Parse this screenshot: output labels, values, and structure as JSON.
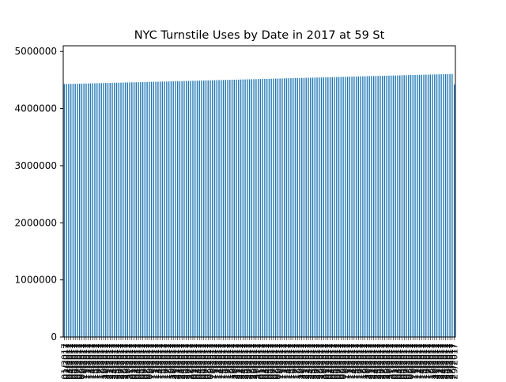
{
  "chart_data": {
    "type": "bar",
    "title": "NYC Turnstile Uses by Date in 2017 at 59 St",
    "ylabel": "",
    "xlabel": "",
    "ylim": [
      0,
      5100000
    ],
    "yticks": [
      0,
      1000000,
      2000000,
      3000000,
      4000000,
      5000000
    ],
    "ytick_labels": [
      "0",
      "1000000",
      "2000000",
      "3000000",
      "4000000",
      "5000000"
    ],
    "bar_color": "#1f77b4",
    "grid": false,
    "legend": "none",
    "categories": [
      "01/01/2017",
      "01/02/2017",
      "01/03/2017",
      "01/04/2017",
      "01/05/2017",
      "01/06/2017",
      "01/07/2017",
      "01/08/2017",
      "01/09/2017",
      "01/10/2017",
      "01/11/2017",
      "01/12/2017",
      "01/13/2017",
      "01/14/2017",
      "01/15/2017",
      "01/16/2017",
      "01/17/2017",
      "01/18/2017",
      "01/19/2017",
      "01/20/2017",
      "01/21/2017",
      "01/22/2017",
      "01/23/2017",
      "01/24/2017",
      "01/25/2017",
      "01/26/2017",
      "01/27/2017",
      "01/28/2017",
      "01/29/2017",
      "01/30/2017",
      "01/31/2017",
      "02/01/2017",
      "02/02/2017",
      "02/03/2017",
      "02/04/2017",
      "02/05/2017",
      "02/06/2017",
      "02/07/2017",
      "02/08/2017",
      "02/09/2017",
      "02/10/2017",
      "02/11/2017",
      "02/12/2017",
      "02/13/2017",
      "02/14/2017",
      "02/15/2017",
      "02/16/2017",
      "02/17/2017",
      "02/18/2017",
      "02/19/2017",
      "02/20/2017",
      "02/21/2017",
      "02/22/2017",
      "02/23/2017",
      "02/24/2017",
      "02/25/2017",
      "02/26/2017",
      "02/27/2017",
      "02/28/2017",
      "03/01/2017",
      "03/02/2017",
      "03/03/2017",
      "03/04/2017",
      "03/05/2017",
      "03/06/2017",
      "03/07/2017",
      "03/08/2017",
      "03/09/2017",
      "03/10/2017",
      "03/11/2017",
      "03/12/2017",
      "03/13/2017",
      "03/14/2017",
      "03/15/2017",
      "03/16/2017",
      "03/17/2017",
      "03/18/2017",
      "03/19/2017",
      "03/20/2017",
      "03/21/2017",
      "03/22/2017",
      "03/23/2017",
      "03/24/2017",
      "03/25/2017",
      "03/26/2017",
      "03/27/2017",
      "03/28/2017",
      "03/29/2017",
      "03/30/2017",
      "03/31/2017",
      "04/01/2017",
      "04/02/2017",
      "04/03/2017",
      "04/04/2017",
      "04/05/2017",
      "04/06/2017",
      "04/07/2017",
      "04/08/2017",
      "04/09/2017",
      "04/10/2017",
      "04/11/2017",
      "04/12/2017",
      "04/13/2017",
      "04/14/2017",
      "04/15/2017",
      "04/16/2017",
      "04/17/2017",
      "04/18/2017",
      "04/19/2017",
      "04/20/2017",
      "04/21/2017",
      "04/22/2017",
      "04/23/2017",
      "04/24/2017",
      "04/25/2017",
      "04/26/2017",
      "04/27/2017",
      "04/28/2017",
      "04/29/2017",
      "04/30/2017",
      "05/01/2017",
      "05/02/2017",
      "05/03/2017",
      "05/04/2017",
      "05/05/2017",
      "05/06/2017",
      "05/07/2017",
      "05/08/2017",
      "05/09/2017",
      "05/10/2017",
      "05/11/2017",
      "05/12/2017",
      "05/13/2017",
      "05/14/2017",
      "05/15/2017",
      "05/16/2017",
      "05/17/2017",
      "05/18/2017",
      "05/19/2017",
      "05/20/2017",
      "05/21/2017",
      "05/22/2017",
      "05/23/2017",
      "05/24/2017",
      "05/25/2017",
      "05/26/2017",
      "05/27/2017",
      "05/28/2017",
      "05/29/2017",
      "05/30/2017",
      "05/31/2017",
      "06/01/2017",
      "06/02/2017",
      "06/03/2017",
      "06/04/2017",
      "06/05/2017",
      "06/06/2017",
      "06/07/2017",
      "06/08/2017",
      "06/09/2017",
      "06/10/2017",
      "06/11/2017",
      "06/12/2017",
      "06/13/2017",
      "06/14/2017",
      "06/15/2017",
      "06/16/2017",
      "06/17/2017",
      "06/18/2017",
      "06/19/2017",
      "06/20/2017",
      "06/21/2017",
      "06/22/2017",
      "06/23/2017",
      "06/24/2017",
      "06/25/2017",
      "06/26/2017",
      "06/27/2017",
      "06/28/2017",
      "06/29/2017"
    ],
    "values": [
      4430000,
      4431000,
      4432000,
      4433000,
      4434000,
      4434000,
      4435000,
      4436000,
      4437000,
      4438000,
      4439000,
      4440000,
      4441000,
      4442000,
      4443000,
      4444000,
      4445000,
      4446000,
      4447000,
      4448000,
      4449000,
      4450000,
      4451000,
      4452000,
      4453000,
      4454000,
      4455000,
      4456000,
      4457000,
      4458000,
      4459000,
      4460000,
      4461000,
      4461000,
      4462000,
      4463000,
      4464000,
      4465000,
      4466000,
      4467000,
      4468000,
      4469000,
      4470000,
      4471000,
      4472000,
      4473000,
      4474000,
      4475000,
      4476000,
      4477000,
      4478000,
      4479000,
      4480000,
      4481000,
      4482000,
      4483000,
      4484000,
      4485000,
      4486000,
      4487000,
      4488000,
      4489000,
      4490000,
      4491000,
      4492000,
      4493000,
      4494000,
      4495000,
      4496000,
      4497000,
      4498000,
      4499000,
      4500000,
      4501000,
      4502000,
      4503000,
      4504000,
      4505000,
      4506000,
      4507000,
      4508000,
      4509000,
      4510000,
      4511000,
      4512000,
      4513000,
      4514000,
      4515000,
      4516000,
      4517000,
      4518000,
      4519000,
      4520000,
      4521000,
      4522000,
      4523000,
      4524000,
      4525000,
      4526000,
      4527000,
      4528000,
      4529000,
      4530000,
      4531000,
      4532000,
      4533000,
      4534000,
      4535000,
      4536000,
      4537000,
      4538000,
      4539000,
      4540000,
      4541000,
      4542000,
      4543000,
      4544000,
      4545000,
      4546000,
      4547000,
      4548000,
      4549000,
      4550000,
      4551000,
      4552000,
      4553000,
      4554000,
      4555000,
      4556000,
      4557000,
      4558000,
      4559000,
      4560000,
      4561000,
      4562000,
      4563000,
      4564000,
      4565000,
      4566000,
      4567000,
      4568000,
      4569000,
      4570000,
      4571000,
      4572000,
      4573000,
      4574000,
      4575000,
      4576000,
      4577000,
      4578000,
      4579000,
      4580000,
      4581000,
      4582000,
      4583000,
      4584000,
      4585000,
      4586000,
      4587000,
      4588000,
      4589000,
      4590000,
      4591000,
      4592000,
      4593000,
      4594000,
      4595000,
      4596000,
      4597000,
      4598000,
      4599000,
      4600000,
      4601000,
      4602000,
      4603000,
      4604000,
      4605000,
      4606000,
      4420000
    ]
  }
}
